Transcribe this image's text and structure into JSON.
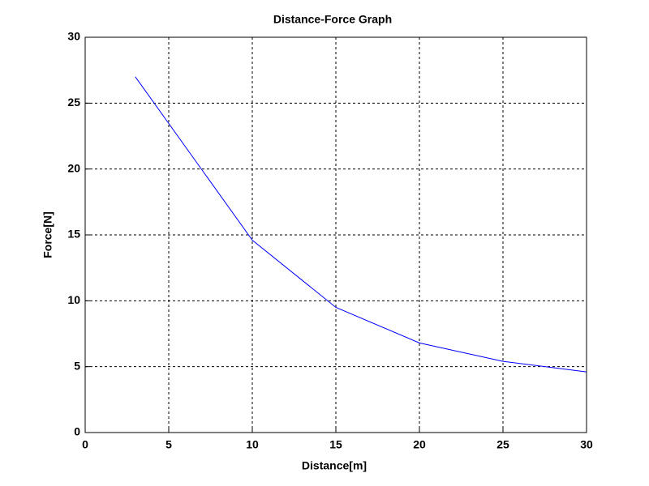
{
  "chart_data": {
    "type": "line",
    "title": "Distance-Force Graph",
    "x_label": "Distance[m]",
    "y_label": "Force[N]",
    "x": [
      3,
      10,
      15,
      20,
      25,
      30
    ],
    "series": [
      {
        "name": "Force",
        "color": "#0000ff",
        "values": [
          27,
          14.6,
          9.5,
          6.8,
          5.4,
          4.6
        ]
      }
    ],
    "xlim": [
      0,
      30
    ],
    "xticks": [
      0,
      5,
      10,
      15,
      20,
      25,
      30
    ],
    "ylim": [
      0,
      30
    ],
    "yticks": [
      0,
      5,
      10,
      15,
      20,
      25,
      30
    ],
    "grid": true,
    "legend": false
  }
}
